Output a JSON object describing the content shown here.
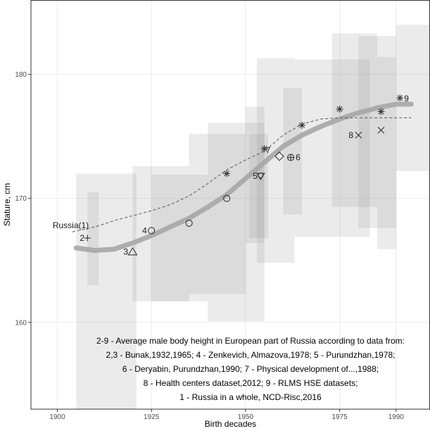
{
  "chart_data": {
    "type": "scatter",
    "xlabel": "Birth decades",
    "ylabel": "Stature, cm",
    "xlim": [
      1893,
      1999
    ],
    "ylim": [
      153,
      186
    ],
    "x_ticks": [
      {
        "value": 1900,
        "label": "1900"
      },
      {
        "value": 1925,
        "label": "1925"
      },
      {
        "value": 1950,
        "label": "1950"
      },
      {
        "value": 1975,
        "label": "1975"
      },
      {
        "value": 1990,
        "label": "1990"
      }
    ],
    "y_ticks": [
      {
        "value": 160,
        "label": "160"
      },
      {
        "value": 170,
        "label": "170"
      },
      {
        "value": 180,
        "label": "180"
      }
    ],
    "grid": true,
    "colors": {
      "band": "#9a9a9a",
      "trend": "#a6a6a6",
      "dashed": "#555555",
      "marker": "#333333",
      "grid": "#ebebeb"
    },
    "ranges": [
      {
        "x": [
          1905,
          1921
        ],
        "y": [
          153,
          172
        ]
      },
      {
        "x": [
          1908,
          1911
        ],
        "y": [
          163,
          170.5
        ]
      },
      {
        "x": [
          1920,
          1935
        ],
        "y": [
          161.7,
          172.6
        ]
      },
      {
        "x": [
          1925,
          1940
        ],
        "y": [
          161.7,
          171.9
        ]
      },
      {
        "x": [
          1935,
          1950
        ],
        "y": [
          162.3,
          175.2
        ]
      },
      {
        "x": [
          1940,
          1955
        ],
        "y": [
          160.1,
          176.1
        ]
      },
      {
        "x": [
          1950,
          1955
        ],
        "y": [
          166.4,
          177.4
        ]
      },
      {
        "x": [
          1951,
          1956
        ],
        "y": [
          166.8,
          175.2
        ]
      },
      {
        "x": [
          1953,
          1963
        ],
        "y": [
          164.8,
          181.3
        ]
      },
      {
        "x": [
          1960,
          1965
        ],
        "y": [
          168.7,
          178.9
        ]
      },
      {
        "x": [
          1963,
          1983
        ],
        "y": [
          166.9,
          181.2
        ]
      },
      {
        "x": [
          1973,
          1985
        ],
        "y": [
          169.3,
          183.3
        ]
      },
      {
        "x": [
          1980,
          1990
        ],
        "y": [
          167.6,
          183.1
        ]
      },
      {
        "x": [
          1985,
          1990
        ],
        "y": [
          165.9,
          181.4
        ]
      },
      {
        "x": [
          1990,
          1999
        ],
        "y": [
          172.2,
          184
        ]
      }
    ],
    "trend": {
      "x": [
        1905,
        1910,
        1915,
        1920,
        1925,
        1930,
        1935,
        1940,
        1945,
        1950,
        1955,
        1960,
        1965,
        1970,
        1975,
        1980,
        1985,
        1990,
        1994
      ],
      "y": [
        166,
        165.8,
        165.9,
        166.4,
        167,
        167.7,
        168.4,
        169.3,
        170.3,
        171.6,
        172.9,
        174.2,
        175.1,
        175.8,
        176.4,
        176.9,
        177.3,
        177.6,
        177.6
      ]
    },
    "series": [
      {
        "name": "Russia(1)",
        "style": "dashed",
        "x": [
          1904,
          1910,
          1915,
          1920,
          1925,
          1930,
          1935,
          1940,
          1945,
          1950,
          1955,
          1960,
          1965,
          1970,
          1975,
          1980,
          1985,
          1990,
          1994
        ],
        "y": [
          167.3,
          167.7,
          168.2,
          168.6,
          169,
          169.5,
          170.2,
          171.2,
          172.3,
          173.1,
          173.8,
          175.1,
          176,
          176.4,
          176.5,
          176.5,
          176.5,
          176.5,
          176.5
        ]
      }
    ],
    "points": [
      {
        "x": 1908,
        "y": 166.8,
        "marker": "plus",
        "label": "2"
      },
      {
        "x": 1920,
        "y": 165.7,
        "marker": "triangle",
        "label": "3"
      },
      {
        "x": 1925,
        "y": 167.4,
        "marker": "circle",
        "label": "4"
      },
      {
        "x": 1935,
        "y": 168,
        "marker": "circle",
        "label": ""
      },
      {
        "x": 1945,
        "y": 170,
        "marker": "circle",
        "label": ""
      },
      {
        "x": 1945,
        "y": 172,
        "marker": "asterisk",
        "label": ""
      },
      {
        "x": 1954,
        "y": 171.8,
        "marker": "triangle-down",
        "label": "5"
      },
      {
        "x": 1955,
        "y": 174,
        "marker": "asterisk",
        "label": "7"
      },
      {
        "x": 1959,
        "y": 173.4,
        "marker": "diamond",
        "label": ""
      },
      {
        "x": 1962,
        "y": 173.3,
        "marker": "circle-plus",
        "label": "6"
      },
      {
        "x": 1965,
        "y": 175.9,
        "marker": "asterisk",
        "label": ""
      },
      {
        "x": 1975,
        "y": 177.2,
        "marker": "asterisk",
        "label": ""
      },
      {
        "x": 1980,
        "y": 175.1,
        "marker": "cross",
        "label": "8"
      },
      {
        "x": 1986,
        "y": 177,
        "marker": "asterisk",
        "label": ""
      },
      {
        "x": 1986,
        "y": 175.5,
        "marker": "cross",
        "label": ""
      },
      {
        "x": 1991,
        "y": 178.1,
        "marker": "asterisk",
        "label": "9"
      }
    ],
    "annotations": [
      "2-9 - Average male body height in European part of Russia according to data from:",
      "2,3 - Bunak,1932,1965; 4 - Zenkevich, Almazova,1978; 5 - Purundzhan,1978;",
      "6 - Deryabin, Purundzhan,1990; 7 -  Physical development of...,1988;",
      "8 - Health centers dataset,2012; 9 - RLMS HSE datasets;",
      "1 - Russia in a whole, NCD-Risc,2016"
    ]
  }
}
